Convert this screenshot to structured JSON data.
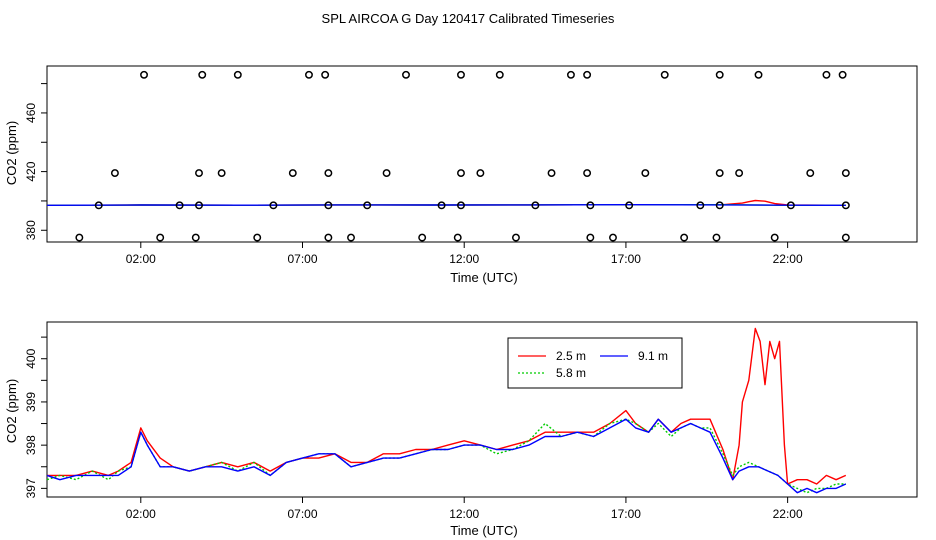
{
  "figure": {
    "title": "SPL AIRCOA G  Day 120417  Calibrated Timeseries"
  },
  "chart_data": [
    {
      "type": "scatter",
      "xlabel": "Time (UTC)",
      "ylabel": "CO2 (ppm)",
      "xlim": [
        -0.9,
        26.0
      ],
      "ylim": [
        372,
        492
      ],
      "x_ticks": [
        2,
        7,
        12,
        17,
        22
      ],
      "x_tick_labels": [
        "02:00",
        "07:00",
        "12:00",
        "17:00",
        "22:00"
      ],
      "y_ticks": [
        380,
        420,
        460
      ],
      "y_tick_labels": [
        "380",
        "420",
        "460"
      ],
      "grid": false,
      "legend": "none",
      "points": [
        {
          "x": 0.1,
          "y": 375
        },
        {
          "x": 0.7,
          "y": 397
        },
        {
          "x": 1.2,
          "y": 419
        },
        {
          "x": 2.1,
          "y": 486
        },
        {
          "x": 2.6,
          "y": 375
        },
        {
          "x": 3.2,
          "y": 397
        },
        {
          "x": 3.7,
          "y": 375
        },
        {
          "x": 3.8,
          "y": 397
        },
        {
          "x": 3.8,
          "y": 419
        },
        {
          "x": 3.9,
          "y": 486
        },
        {
          "x": 4.5,
          "y": 419
        },
        {
          "x": 5.0,
          "y": 486
        },
        {
          "x": 5.6,
          "y": 375
        },
        {
          "x": 6.1,
          "y": 397
        },
        {
          "x": 6.7,
          "y": 419
        },
        {
          "x": 7.2,
          "y": 486
        },
        {
          "x": 7.7,
          "y": 486
        },
        {
          "x": 7.8,
          "y": 419
        },
        {
          "x": 7.8,
          "y": 397
        },
        {
          "x": 7.8,
          "y": 375
        },
        {
          "x": 8.5,
          "y": 375
        },
        {
          "x": 9.0,
          "y": 397
        },
        {
          "x": 9.6,
          "y": 419
        },
        {
          "x": 10.2,
          "y": 486
        },
        {
          "x": 10.7,
          "y": 375
        },
        {
          "x": 11.3,
          "y": 397
        },
        {
          "x": 11.8,
          "y": 375
        },
        {
          "x": 11.9,
          "y": 397
        },
        {
          "x": 11.9,
          "y": 419
        },
        {
          "x": 11.9,
          "y": 486
        },
        {
          "x": 12.5,
          "y": 419
        },
        {
          "x": 13.1,
          "y": 486
        },
        {
          "x": 13.6,
          "y": 375
        },
        {
          "x": 14.2,
          "y": 397
        },
        {
          "x": 14.7,
          "y": 419
        },
        {
          "x": 15.3,
          "y": 486
        },
        {
          "x": 15.8,
          "y": 486
        },
        {
          "x": 15.8,
          "y": 419
        },
        {
          "x": 15.9,
          "y": 397
        },
        {
          "x": 15.9,
          "y": 375
        },
        {
          "x": 16.6,
          "y": 375
        },
        {
          "x": 17.1,
          "y": 397
        },
        {
          "x": 17.6,
          "y": 419
        },
        {
          "x": 18.2,
          "y": 486
        },
        {
          "x": 18.8,
          "y": 375
        },
        {
          "x": 19.3,
          "y": 397
        },
        {
          "x": 19.8,
          "y": 375
        },
        {
          "x": 19.9,
          "y": 397
        },
        {
          "x": 19.9,
          "y": 419
        },
        {
          "x": 19.9,
          "y": 486
        },
        {
          "x": 20.5,
          "y": 419
        },
        {
          "x": 21.1,
          "y": 486
        },
        {
          "x": 21.6,
          "y": 375
        },
        {
          "x": 22.1,
          "y": 397
        },
        {
          "x": 22.7,
          "y": 419
        },
        {
          "x": 23.2,
          "y": 486
        },
        {
          "x": 23.7,
          "y": 486
        },
        {
          "x": 23.8,
          "y": 419
        },
        {
          "x": 23.8,
          "y": 397
        },
        {
          "x": 23.8,
          "y": 375
        }
      ],
      "series": [
        {
          "color": "#ff0000",
          "x": [
            -0.9,
            2.0,
            5.0,
            8.0,
            11.0,
            14.0,
            17.0,
            20.0,
            20.6,
            20.8,
            21.0,
            21.3,
            21.6,
            22.0,
            23.8
          ],
          "y": [
            397.0,
            397.2,
            397.1,
            397.3,
            397.2,
            397.3,
            397.4,
            397.4,
            398.5,
            399.5,
            400.3,
            399.8,
            398.2,
            397.3,
            397.0
          ]
        },
        {
          "color": "#00cc00",
          "x": [
            -0.9,
            2.0,
            5.0,
            8.0,
            11.0,
            14.0,
            17.0,
            20.0,
            22.0,
            23.8
          ],
          "y": [
            397.0,
            397.2,
            397.1,
            397.3,
            397.2,
            397.3,
            397.4,
            397.4,
            397.0,
            397.0
          ]
        },
        {
          "color": "#0000ff",
          "x": [
            -0.9,
            2.0,
            5.0,
            8.0,
            11.0,
            14.0,
            17.0,
            20.0,
            22.0,
            23.8
          ],
          "y": [
            397.0,
            397.2,
            397.1,
            397.3,
            397.2,
            397.3,
            397.4,
            397.3,
            397.1,
            397.0
          ]
        }
      ]
    },
    {
      "type": "line",
      "xlabel": "Time (UTC)",
      "ylabel": "CO2 (ppm)",
      "xlim": [
        -0.9,
        26.0
      ],
      "ylim": [
        396.8,
        400.85
      ],
      "x_ticks": [
        2,
        7,
        12,
        17,
        22
      ],
      "x_tick_labels": [
        "02:00",
        "07:00",
        "12:00",
        "17:00",
        "22:00"
      ],
      "y_ticks": [
        397,
        398,
        399,
        400
      ],
      "y_tick_labels": [
        "397",
        "398",
        "399",
        "400"
      ],
      "grid": false,
      "legend": "top-center",
      "series": [
        {
          "name": "2.5 m",
          "color": "#ff0000",
          "dash": "",
          "x": [
            -0.9,
            -0.5,
            0,
            0.5,
            1,
            1.3,
            1.7,
            2.0,
            2.2,
            2.6,
            3.0,
            3.5,
            4,
            4.5,
            5,
            5.5,
            6,
            6.5,
            7,
            7.5,
            8,
            8.5,
            9,
            9.5,
            10,
            10.5,
            11,
            11.5,
            12,
            12.5,
            13,
            13.5,
            14,
            14.5,
            15,
            15.5,
            16,
            16.5,
            17,
            17.3,
            17.7,
            18.0,
            18.4,
            18.7,
            19.0,
            19.3,
            19.6,
            20.0,
            20.3,
            20.5,
            20.6,
            20.8,
            21.0,
            21.15,
            21.3,
            21.45,
            21.6,
            21.75,
            21.9,
            22.0,
            22.3,
            22.6,
            22.9,
            23.2,
            23.5,
            23.8
          ],
          "y": [
            397.3,
            397.3,
            397.3,
            397.4,
            397.3,
            397.4,
            397.6,
            398.4,
            398.1,
            397.7,
            397.5,
            397.4,
            397.5,
            397.6,
            397.5,
            397.6,
            397.4,
            397.6,
            397.7,
            397.7,
            397.8,
            397.6,
            397.6,
            397.8,
            397.8,
            397.9,
            397.9,
            398.0,
            398.1,
            398.0,
            397.9,
            398.0,
            398.1,
            398.3,
            398.3,
            398.3,
            398.3,
            398.5,
            398.8,
            398.5,
            398.3,
            398.6,
            398.3,
            398.5,
            398.6,
            398.6,
            398.6,
            397.9,
            397.2,
            398.0,
            399.0,
            399.5,
            400.7,
            400.4,
            399.4,
            400.4,
            400.0,
            400.4,
            398.0,
            397.1,
            397.2,
            397.2,
            397.1,
            397.3,
            397.2,
            397.3
          ]
        },
        {
          "name": "5.8 m",
          "color": "#00cc00",
          "dash": "2,2",
          "x": [
            -0.9,
            -0.5,
            0,
            0.5,
            1,
            1.3,
            1.7,
            2.0,
            2.2,
            2.6,
            3.0,
            3.5,
            4,
            4.5,
            5,
            5.5,
            6,
            6.5,
            7,
            7.5,
            8,
            8.5,
            9,
            9.5,
            10,
            10.5,
            11,
            11.5,
            12,
            12.5,
            13,
            13.5,
            14,
            14.5,
            15,
            15.5,
            16,
            16.5,
            17,
            17.3,
            17.7,
            18.0,
            18.4,
            18.7,
            19.0,
            19.3,
            19.6,
            20.0,
            20.3,
            20.5,
            20.8,
            21.1,
            21.4,
            21.7,
            22.0,
            22.3,
            22.6,
            22.9,
            23.2,
            23.5,
            23.8
          ],
          "y": [
            397.2,
            397.3,
            397.2,
            397.4,
            397.2,
            397.4,
            397.5,
            398.3,
            398.0,
            397.5,
            397.5,
            397.4,
            397.5,
            397.6,
            397.4,
            397.6,
            397.3,
            397.6,
            397.7,
            397.8,
            397.8,
            397.5,
            397.6,
            397.7,
            397.7,
            397.8,
            397.9,
            397.9,
            398.0,
            398.0,
            397.8,
            397.9,
            398.1,
            398.5,
            398.2,
            398.3,
            398.2,
            398.5,
            398.6,
            398.5,
            398.3,
            398.5,
            398.2,
            398.4,
            398.5,
            398.4,
            398.4,
            397.8,
            397.3,
            397.5,
            397.6,
            397.5,
            397.4,
            397.3,
            397.1,
            397.0,
            396.9,
            397.0,
            397.0,
            397.1,
            397.1
          ]
        },
        {
          "name": "9.1 m",
          "color": "#0000ff",
          "dash": "",
          "x": [
            -0.9,
            -0.5,
            0,
            0.5,
            1,
            1.3,
            1.7,
            2.0,
            2.2,
            2.6,
            3.0,
            3.5,
            4,
            4.5,
            5,
            5.5,
            6,
            6.5,
            7,
            7.5,
            8,
            8.5,
            9,
            9.5,
            10,
            10.5,
            11,
            11.5,
            12,
            12.5,
            13,
            13.5,
            14,
            14.5,
            15,
            15.5,
            16,
            16.5,
            17,
            17.3,
            17.7,
            18.0,
            18.4,
            18.7,
            19.0,
            19.3,
            19.6,
            20.0,
            20.3,
            20.5,
            20.8,
            21.1,
            21.4,
            21.7,
            22.0,
            22.3,
            22.6,
            22.9,
            23.2,
            23.5,
            23.8
          ],
          "y": [
            397.3,
            397.2,
            397.3,
            397.3,
            397.3,
            397.3,
            397.5,
            398.3,
            398.0,
            397.5,
            397.5,
            397.4,
            397.5,
            397.5,
            397.4,
            397.5,
            397.3,
            397.6,
            397.7,
            397.8,
            397.8,
            397.5,
            397.6,
            397.7,
            397.7,
            397.8,
            397.9,
            397.9,
            398.0,
            398.0,
            397.9,
            397.9,
            398.0,
            398.2,
            398.2,
            398.3,
            398.2,
            398.4,
            398.6,
            398.4,
            398.3,
            398.6,
            398.3,
            398.4,
            398.5,
            398.4,
            398.3,
            397.7,
            397.2,
            397.4,
            397.5,
            397.5,
            397.4,
            397.3,
            397.1,
            396.9,
            397.0,
            396.9,
            397.0,
            397.0,
            397.1
          ]
        }
      ]
    }
  ]
}
